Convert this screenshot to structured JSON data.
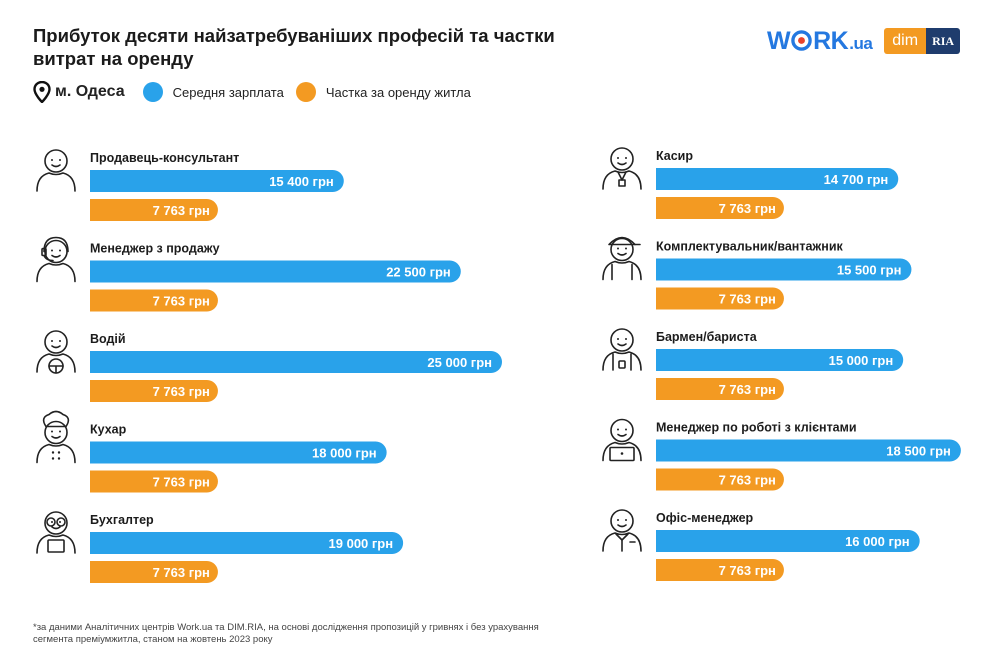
{
  "title": "Прибуток десяти найзатребуваніших професій та частки витрат на оренду",
  "logos": {
    "work_main": "WORK",
    "work_suffix": ".ua",
    "dim": "dim",
    "ria": "RIA"
  },
  "legend": {
    "city": "м. Одеса",
    "salary_label": "Середня зарплата",
    "rent_label": "Частка за оренду житла"
  },
  "colors": {
    "salary": "#29a2ea",
    "rent": "#f39a22",
    "icon_stroke": "#222222"
  },
  "footnote": "*за даними Аналітичних центрів Work.ua та DIM.RIA, на основі дослідження пропозицій у гривнях і без урахування сегмента преміумжитла, станом на жовтень 2023 року",
  "chart_data": {
    "type": "bar",
    "unit": "грн",
    "series": [
      {
        "name": "Середня зарплата",
        "key": "salary"
      },
      {
        "name": "Частка за оренду житла",
        "key": "rent"
      }
    ],
    "categories": [
      {
        "name": "Продавець-консультант",
        "icon": "person-icon",
        "salary": 15400,
        "salary_label": "15 400 грн",
        "rent": 7763,
        "rent_label": "7 763 грн"
      },
      {
        "name": "Менеджер з продажу",
        "icon": "headset-person-icon",
        "salary": 22500,
        "salary_label": "22 500 грн",
        "rent": 7763,
        "rent_label": "7 763 грн"
      },
      {
        "name": "Водій",
        "icon": "driver-icon",
        "salary": 25000,
        "salary_label": "25 000 грн",
        "rent": 7763,
        "rent_label": "7 763 грн"
      },
      {
        "name": "Кухар",
        "icon": "chef-icon",
        "salary": 18000,
        "salary_label": "18 000 грн",
        "rent": 7763,
        "rent_label": "7 763 грн"
      },
      {
        "name": "Бухгалтер",
        "icon": "accountant-icon",
        "salary": 19000,
        "salary_label": "19 000 грн",
        "rent": 7763,
        "rent_label": "7 763 грн"
      },
      {
        "name": "Касир",
        "icon": "cashier-icon",
        "salary": 14700,
        "salary_label": "14 700 грн",
        "rent": 7763,
        "rent_label": "7 763 грн"
      },
      {
        "name": "Комплектувальник/вантажник",
        "icon": "loader-icon",
        "salary": 15500,
        "salary_label": "15 500 грн",
        "rent": 7763,
        "rent_label": "7 763 грн"
      },
      {
        "name": "Бармен/бариста",
        "icon": "barista-icon",
        "salary": 15000,
        "salary_label": "15 000 грн",
        "rent": 7763,
        "rent_label": "7 763 грн"
      },
      {
        "name": "Менеджер по роботі з клієнтами",
        "icon": "laptop-person-icon",
        "salary": 18500,
        "salary_label": "18 500 грн",
        "rent": 7763,
        "rent_label": "7 763 грн"
      },
      {
        "name": "Офіс-менеджер",
        "icon": "office-person-icon",
        "salary": 16000,
        "salary_label": "16 000 грн",
        "rent": 7763,
        "rent_label": "7 763 грн"
      }
    ]
  }
}
